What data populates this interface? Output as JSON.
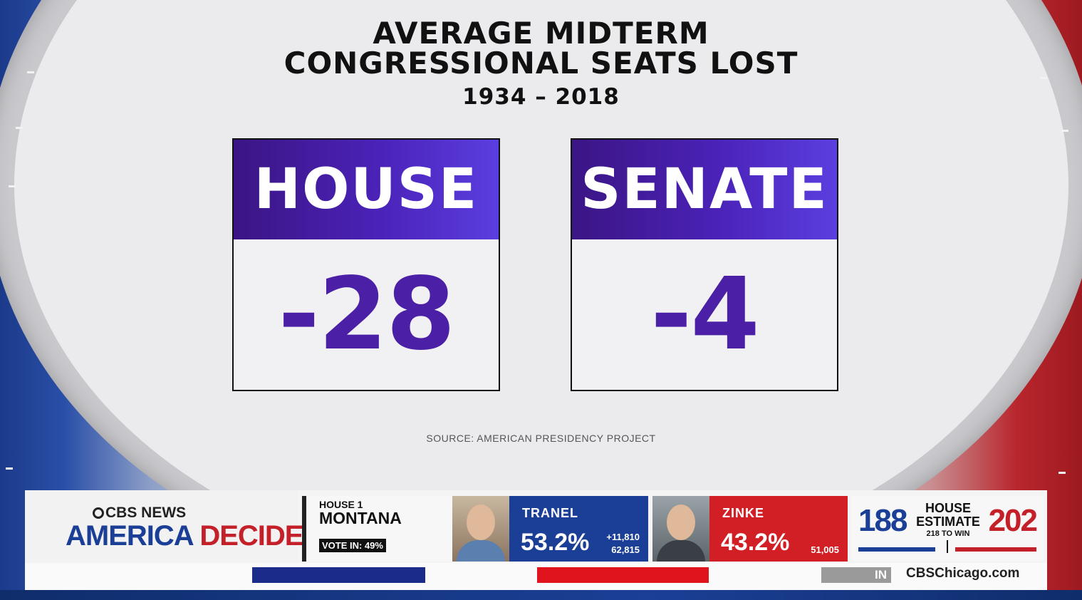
{
  "graphic": {
    "title_line1": "AVERAGE MIDTERM",
    "title_line2": "CONGRESSIONAL SEATS LOST",
    "period": "1934 – 2018",
    "cards": [
      {
        "label": "HOUSE",
        "value": "-28"
      },
      {
        "label": "SENATE",
        "value": "-4"
      }
    ],
    "source": "SOURCE: AMERICAN PRESIDENCY PROJECT",
    "colors": {
      "card_header": "#4a22b8",
      "value_text": "#4b1fa6"
    }
  },
  "ticker": {
    "brand_network": "CBS NEWS",
    "brand_show_word1": "AMERICA",
    "brand_show_word2": "DECIDES",
    "race_type": "HOUSE 1",
    "race_state": "MONTANA",
    "vote_in": "VOTE IN: 49%",
    "candidates": [
      {
        "name": "TRANEL",
        "pct": "53.2%",
        "lead": "+11,810",
        "votes": "62,815",
        "color": "#1b3f96"
      },
      {
        "name": "ZINKE",
        "pct": "43.2%",
        "votes": "51,005",
        "color": "#d21f26"
      }
    ],
    "estimate": {
      "dem": "188",
      "label_line1": "HOUSE",
      "label_line2": "ESTIMATE",
      "to_win": "218 TO WIN",
      "rep": "202"
    },
    "crawl_tag": "IN",
    "site": "CBSChicago.com"
  }
}
